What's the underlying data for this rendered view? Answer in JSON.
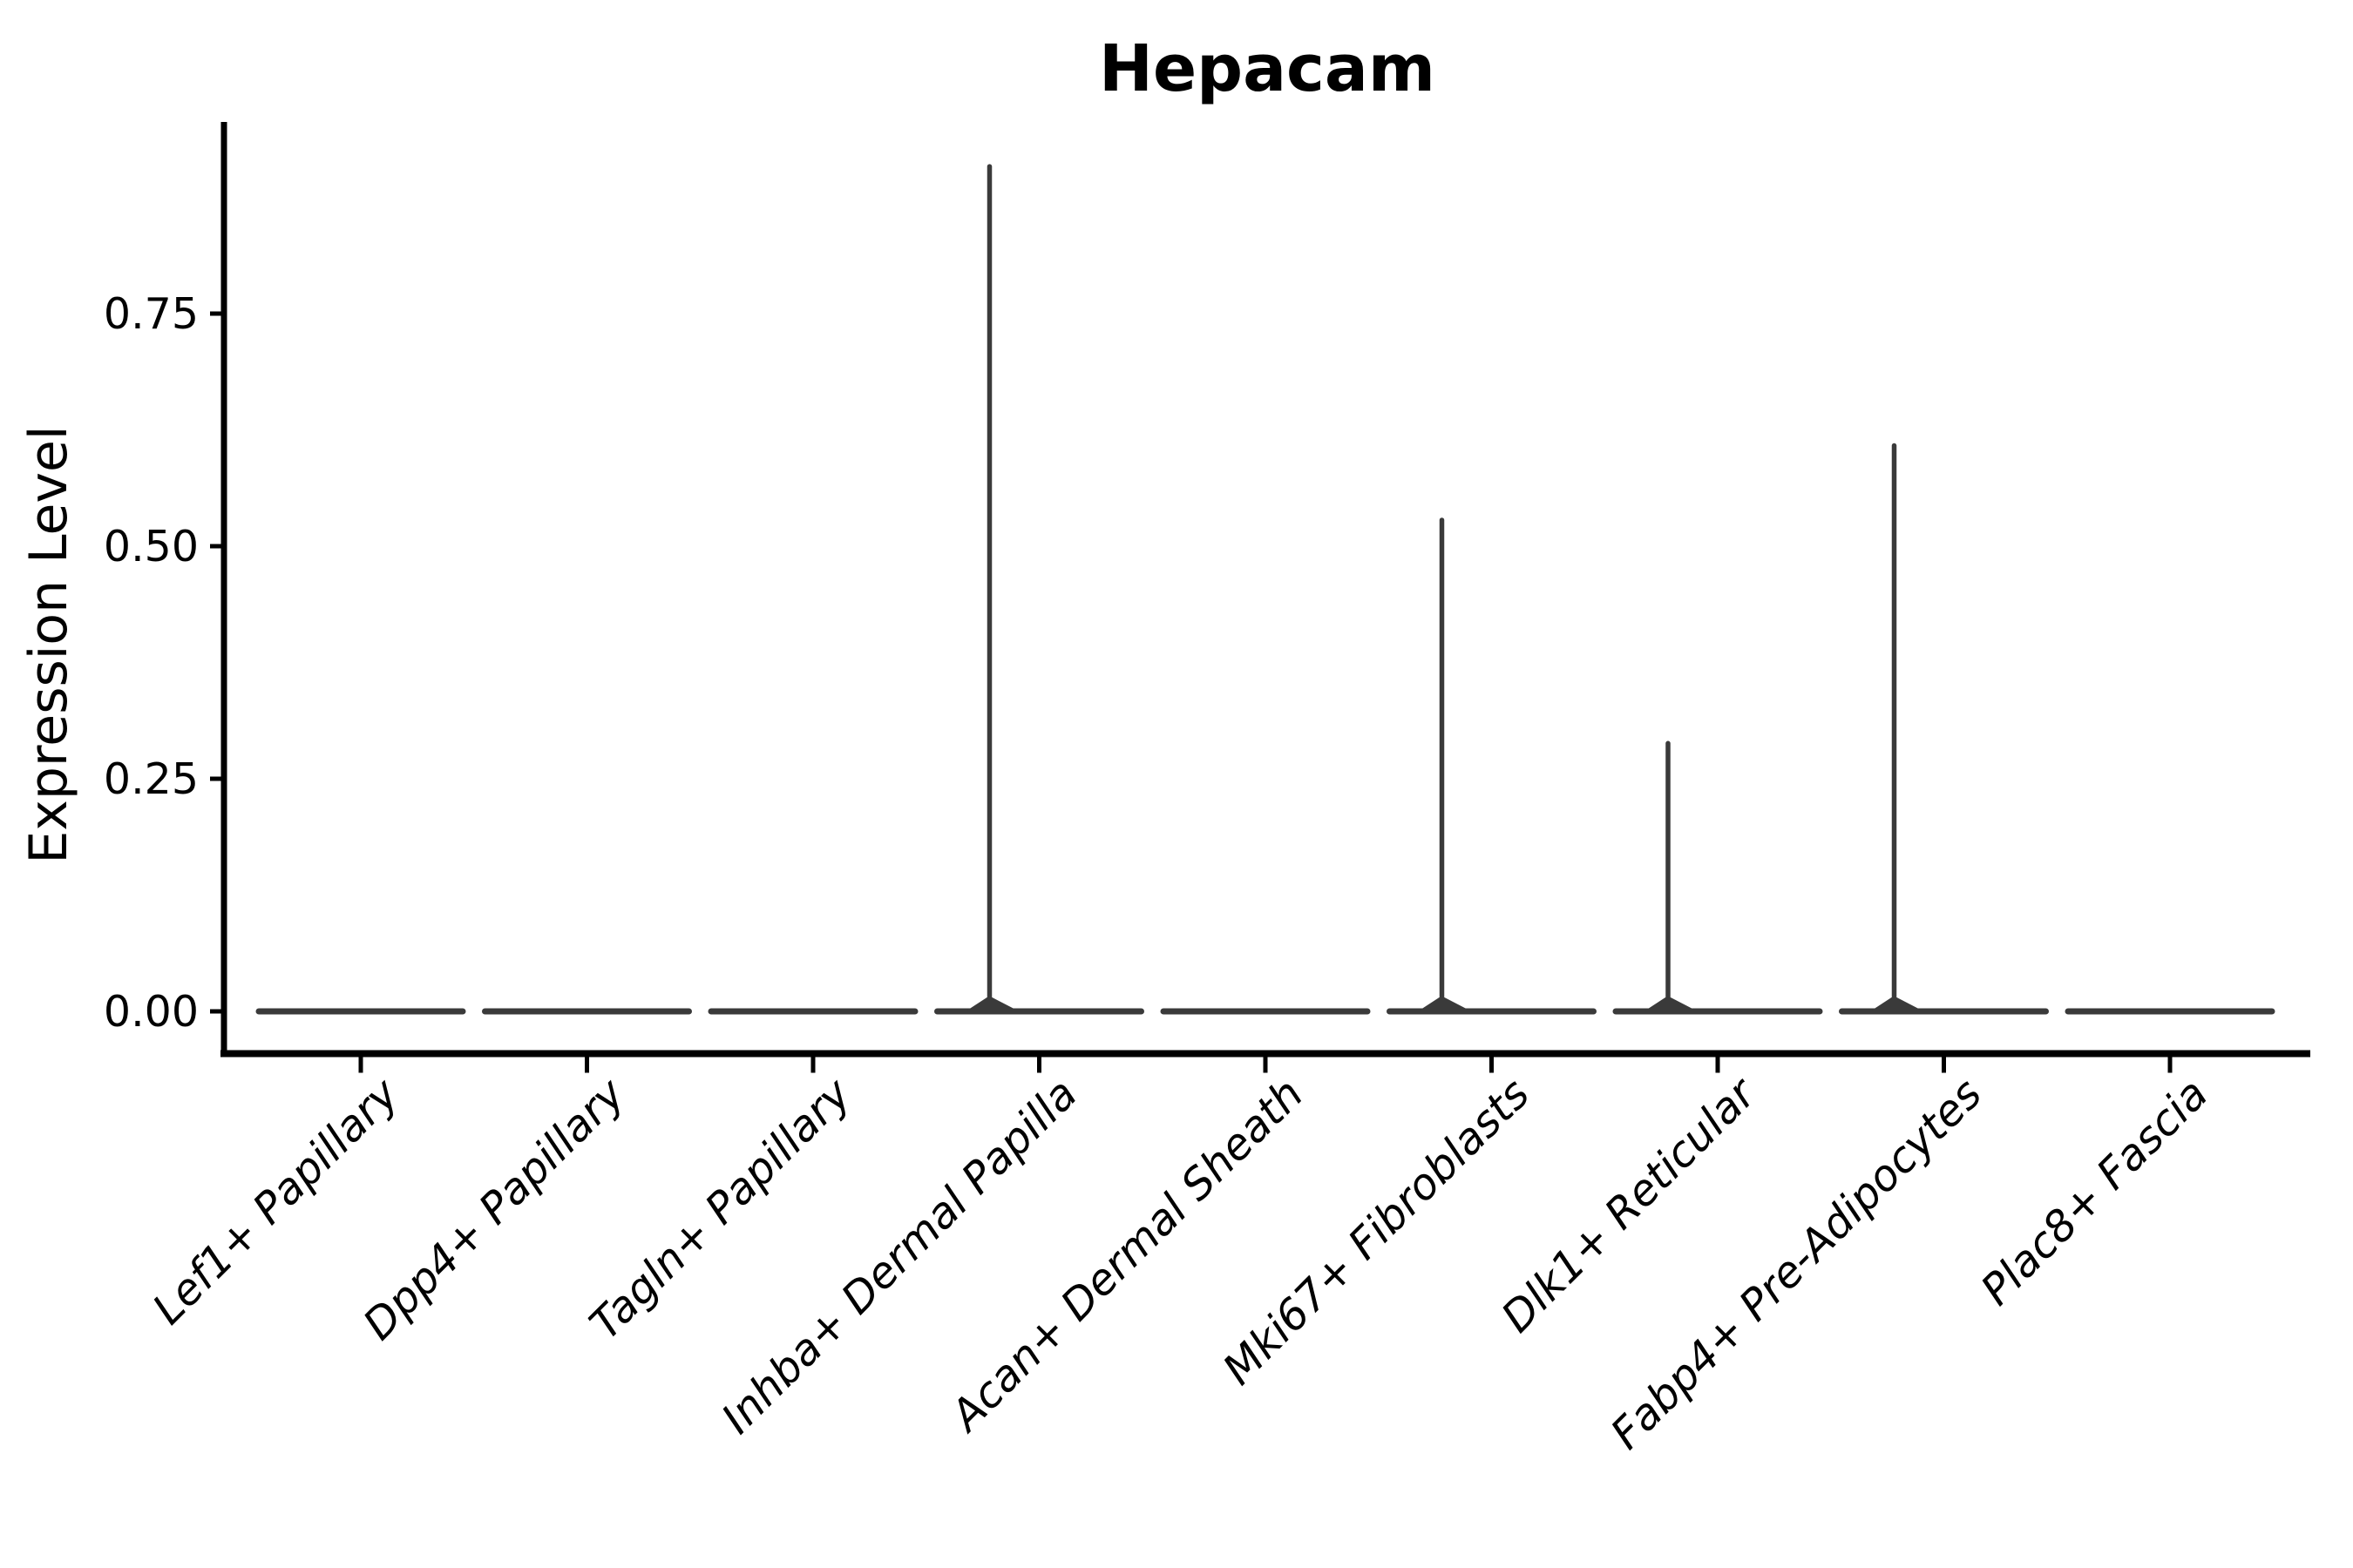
{
  "chart_data": {
    "type": "violin",
    "title": "Hepacam",
    "xlabel": "",
    "ylabel": "Expression Level",
    "ylim": [
      0,
      0.956
    ],
    "grid": false,
    "legend": false,
    "yticks": [
      {
        "value": 0.0,
        "label": "0.00"
      },
      {
        "value": 0.25,
        "label": "0.25"
      },
      {
        "value": 0.5,
        "label": "0.50"
      },
      {
        "value": 0.75,
        "label": "0.75"
      }
    ],
    "categories": [
      "Lef1+ Papillary",
      "Dpp4+ Papillary",
      "Tagln+ Papillary",
      "Inhba+ Dermal Papilla",
      "Acan+ Dermal Sheath",
      "Mki67+ Fibroblasts",
      "Dlk1+ Reticular",
      "Fabp4+ Pre-Adipocytes",
      "Plac8+ Fascia"
    ],
    "violins": [
      {
        "category": "Lef1+ Papillary",
        "baseline_value": 0,
        "peak_value": 0
      },
      {
        "category": "Dpp4+ Papillary",
        "baseline_value": 0,
        "peak_value": 0
      },
      {
        "category": "Tagln+ Papillary",
        "baseline_value": 0,
        "peak_value": 0
      },
      {
        "category": "Inhba+ Dermal Papilla",
        "baseline_value": 0,
        "peak_value": 0.91
      },
      {
        "category": "Acan+ Dermal Sheath",
        "baseline_value": 0,
        "peak_value": 0
      },
      {
        "category": "Mki67+ Fibroblasts",
        "baseline_value": 0,
        "peak_value": 0.53
      },
      {
        "category": "Dlk1+ Reticular",
        "baseline_value": 0,
        "peak_value": 0.29
      },
      {
        "category": "Fabp4+ Pre-Adipocytes",
        "baseline_value": 0,
        "peak_value": 0.61
      },
      {
        "category": "Plac8+ Fascia",
        "baseline_value": 0,
        "peak_value": 0
      }
    ],
    "colors": {
      "violin_stroke": "#3a3a3a",
      "axis": "#000000",
      "background": "#ffffff"
    }
  }
}
